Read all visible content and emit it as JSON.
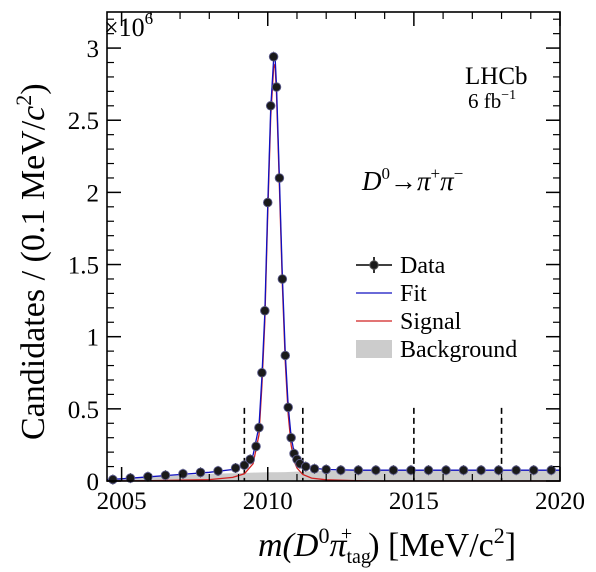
{
  "chart_data": {
    "type": "scatter",
    "title": "",
    "xlabel_parts": {
      "pre": "m(D",
      "sup0": "0",
      "pi": "π",
      "sub": "tag",
      "sup_plus": "+",
      "post": ") [MeV/c",
      "sup2": "2",
      "close": "]"
    },
    "ylabel_parts": {
      "pre": "Candidates / (0.1 MeV/",
      "c": "c",
      "sup2": "2",
      "close": ")"
    },
    "y_multiplier": {
      "base": "×10",
      "exp": "6"
    },
    "xlim": [
      2004.5,
      2020
    ],
    "ylim": [
      0,
      3.25
    ],
    "x_ticks": [
      2005,
      2010,
      2015,
      2020
    ],
    "x_tick_labels": [
      "2005",
      "2010",
      "2015",
      "2020"
    ],
    "y_ticks": [
      0,
      0.5,
      1,
      1.5,
      2,
      2.5,
      3
    ],
    "y_tick_labels": [
      "0",
      "0.5",
      "1",
      "1.5",
      "2",
      "2.5",
      "3"
    ],
    "experiment_label": "LHCb",
    "luminosity": {
      "value": "6 fb",
      "exp": "−1"
    },
    "decay_label": {
      "D": "D",
      "sup0": "0",
      "arrow": "→",
      "pi1": "π",
      "plus": "+",
      "pi2": "π",
      "minus": "−"
    },
    "legend": [
      {
        "label": "Data",
        "kind": "marker",
        "color": "#000000"
      },
      {
        "label": "Fit",
        "kind": "line",
        "color": "#1010c0"
      },
      {
        "label": "Signal",
        "kind": "line",
        "color": "#d02020"
      },
      {
        "label": "Background",
        "kind": "box",
        "color": "#cccccc"
      }
    ],
    "legend_position": "center-right",
    "dashed_lines_x": [
      2009.2,
      2011.2,
      2015,
      2018
    ],
    "data_points": {
      "x": [
        2004.7,
        2005.3,
        2005.9,
        2006.5,
        2007.1,
        2007.7,
        2008.3,
        2008.9,
        2009.2,
        2009.4,
        2009.6,
        2009.7,
        2009.8,
        2009.9,
        2010.0,
        2010.1,
        2010.2,
        2010.3,
        2010.4,
        2010.5,
        2010.6,
        2010.7,
        2010.8,
        2010.9,
        2011.0,
        2011.1,
        2011.3,
        2011.6,
        2012.0,
        2012.5,
        2013.1,
        2013.7,
        2014.3,
        2014.9,
        2015.5,
        2016.1,
        2016.7,
        2017.3,
        2017.9,
        2018.5,
        2019.1,
        2019.7
      ],
      "y": [
        0.01,
        0.02,
        0.03,
        0.04,
        0.05,
        0.06,
        0.07,
        0.09,
        0.11,
        0.15,
        0.24,
        0.37,
        0.75,
        1.18,
        1.93,
        2.6,
        2.94,
        2.73,
        2.1,
        1.4,
        0.87,
        0.51,
        0.3,
        0.19,
        0.15,
        0.12,
        0.1,
        0.085,
        0.08,
        0.075,
        0.075,
        0.075,
        0.075,
        0.075,
        0.075,
        0.075,
        0.075,
        0.075,
        0.075,
        0.075,
        0.075,
        0.075
      ]
    },
    "fit_curve": {
      "x": [
        2004.5,
        2005,
        2006,
        2007,
        2008,
        2008.8,
        2009.2,
        2009.5,
        2009.7,
        2009.8,
        2009.9,
        2010.0,
        2010.1,
        2010.2,
        2010.25,
        2010.3,
        2010.4,
        2010.5,
        2010.6,
        2010.7,
        2010.8,
        2010.9,
        2011.0,
        2011.2,
        2011.5,
        2012,
        2013,
        2014,
        2016,
        2018,
        2020
      ],
      "y": [
        0.01,
        0.015,
        0.03,
        0.045,
        0.06,
        0.08,
        0.11,
        0.18,
        0.38,
        0.72,
        1.16,
        1.9,
        2.58,
        2.92,
        2.95,
        2.74,
        2.1,
        1.41,
        0.88,
        0.52,
        0.31,
        0.2,
        0.15,
        0.11,
        0.09,
        0.08,
        0.075,
        0.075,
        0.075,
        0.075,
        0.075
      ]
    },
    "signal_curve": {
      "x": [
        2004.5,
        2006,
        2008,
        2008.8,
        2009.2,
        2009.5,
        2009.7,
        2009.8,
        2009.9,
        2010.0,
        2010.1,
        2010.2,
        2010.25,
        2010.3,
        2010.4,
        2010.5,
        2010.6,
        2010.7,
        2010.8,
        2010.9,
        2011.0,
        2011.2,
        2011.5,
        2012,
        2013,
        2014,
        2020
      ],
      "y": [
        0.0,
        0.002,
        0.01,
        0.025,
        0.05,
        0.12,
        0.32,
        0.66,
        1.1,
        1.84,
        2.52,
        2.86,
        2.89,
        2.68,
        2.04,
        1.35,
        0.82,
        0.46,
        0.25,
        0.14,
        0.09,
        0.045,
        0.02,
        0.008,
        0.002,
        0.0,
        0.0
      ]
    },
    "background_curve": {
      "x": [
        2004.5,
        2006,
        2008,
        2009,
        2009.5,
        2010,
        2010.3,
        2010.6,
        2011,
        2011.5,
        2012,
        2013,
        2014,
        2016,
        2018,
        2020
      ],
      "y": [
        0.01,
        0.028,
        0.05,
        0.055,
        0.058,
        0.06,
        0.06,
        0.062,
        0.065,
        0.068,
        0.07,
        0.072,
        0.073,
        0.074,
        0.075,
        0.075
      ]
    }
  }
}
